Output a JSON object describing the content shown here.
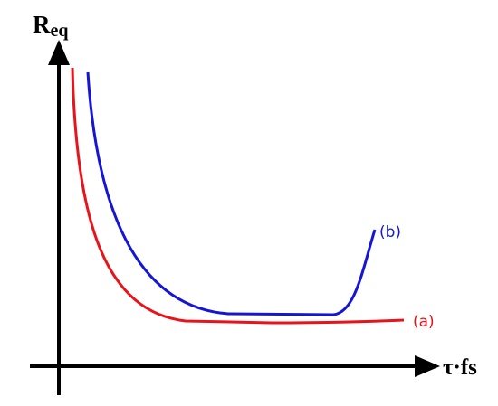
{
  "axes": {
    "y_label": {
      "main": "R",
      "sub": "eq"
    },
    "x_label": "τ·fs"
  },
  "curves": [
    {
      "label": "(a)"
    },
    {
      "label": "(b)"
    }
  ]
}
